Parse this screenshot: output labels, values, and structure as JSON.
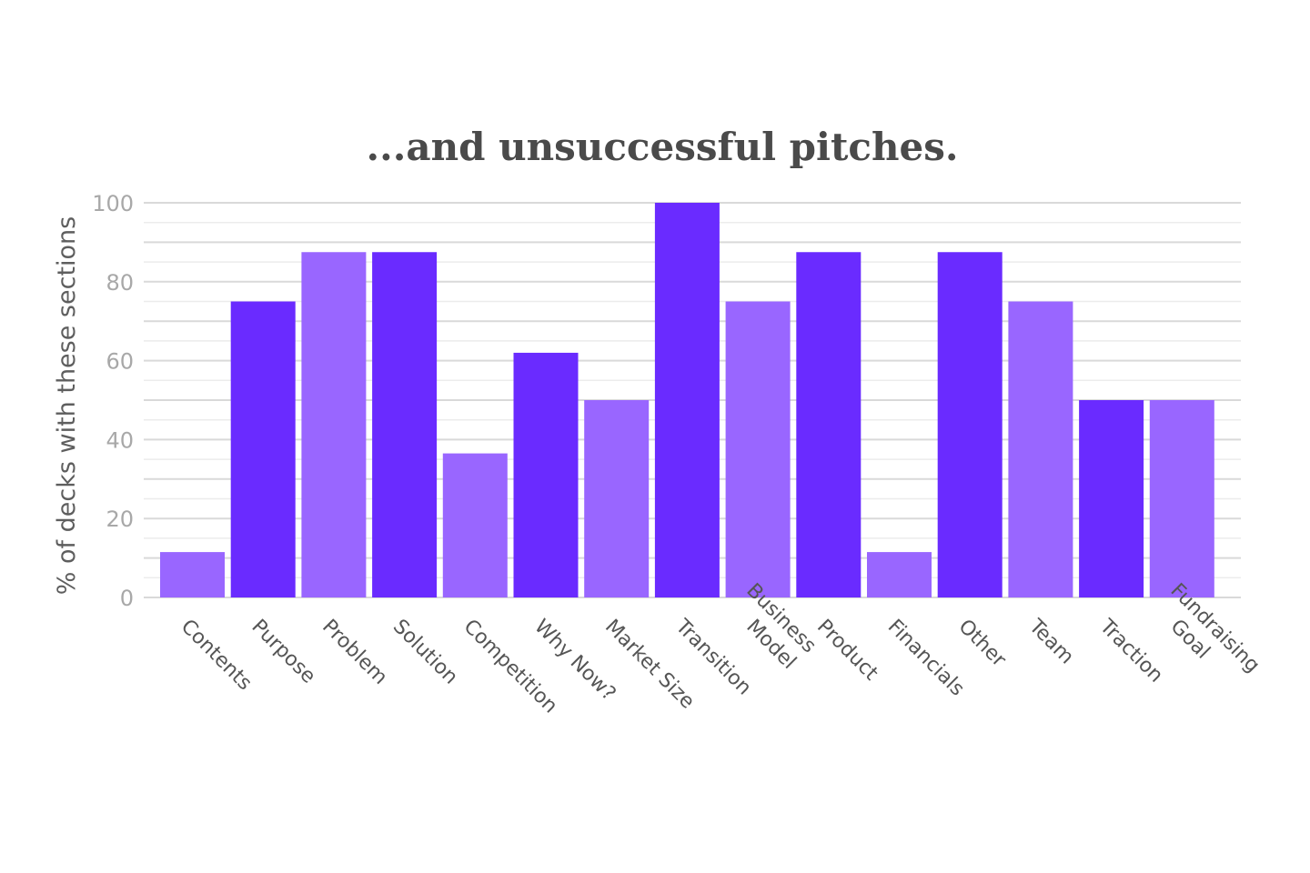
{
  "chart_data": {
    "type": "bar",
    "title": "...and unsuccessful pitches.",
    "ylabel": "% of decks with these sections",
    "xlabel": "",
    "ylim": [
      0,
      100
    ],
    "yticks": [
      0,
      20,
      40,
      60,
      80,
      100
    ],
    "grid": true,
    "categories": [
      "Contents",
      "Purpose",
      "Problem",
      "Solution",
      "Competition",
      "Why Now?",
      "Market Size",
      "Transition",
      "Business\nModel",
      "Product",
      "Financials",
      "Other",
      "Team",
      "Traction",
      "Fundraising\nGoal"
    ],
    "values": [
      11.5,
      75,
      87.5,
      87.5,
      36.5,
      62,
      50,
      100,
      75,
      87.5,
      11.5,
      87.5,
      75,
      50,
      50
    ],
    "colors": [
      "light",
      "dark",
      "light",
      "dark",
      "light",
      "dark",
      "light",
      "dark",
      "light",
      "dark",
      "light",
      "dark",
      "light",
      "dark",
      "light"
    ],
    "palette": {
      "dark": "#6a2bff",
      "light": "#9966ff"
    }
  }
}
